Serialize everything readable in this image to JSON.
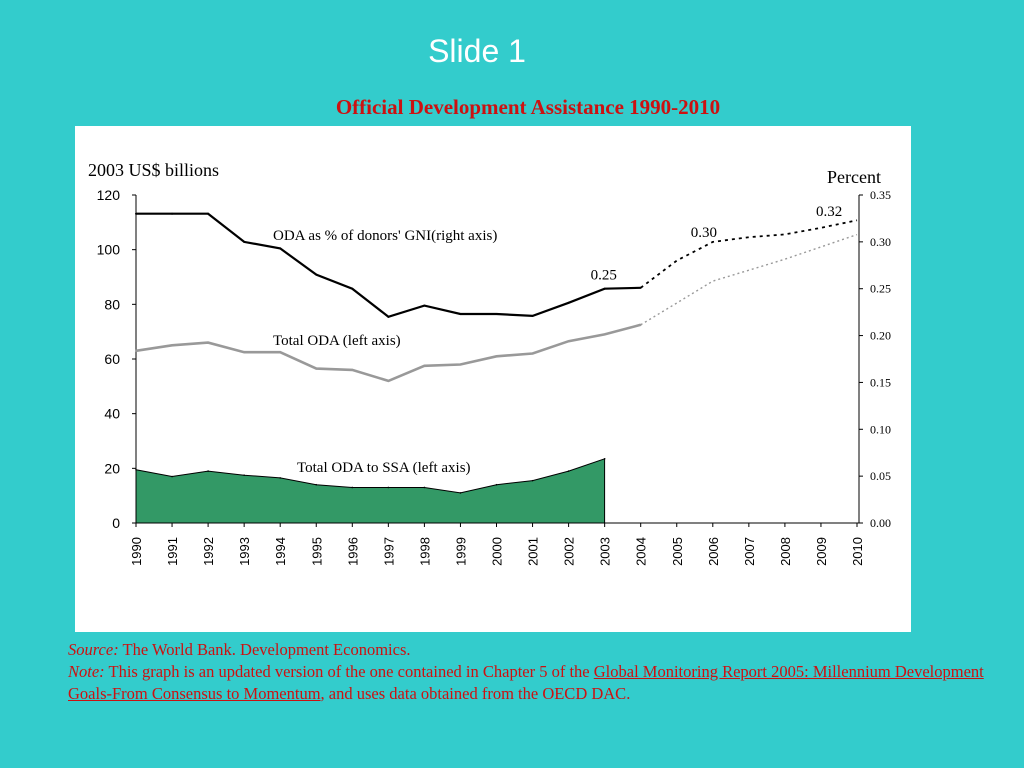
{
  "slide": {
    "title": "Slide 1"
  },
  "chart_data": {
    "type": "line",
    "title": "Official Development Assistance 1990-2010",
    "left_axis_label": "2003 US$ billions",
    "right_axis_label": "Percent",
    "years": [
      "1990",
      "1991",
      "1992",
      "1993",
      "1994",
      "1995",
      "1996",
      "1997",
      "1998",
      "1999",
      "2000",
      "2001",
      "2002",
      "2003",
      "2004",
      "2005",
      "2006",
      "2007",
      "2008",
      "2009",
      "2010"
    ],
    "left_ticks": [
      "0",
      "20",
      "40",
      "60",
      "80",
      "100",
      "120"
    ],
    "left_ylim": [
      0,
      120
    ],
    "right_ticks": [
      "0.00",
      "0.05",
      "0.10",
      "0.15",
      "0.20",
      "0.25",
      "0.30",
      "0.35"
    ],
    "right_ylim": [
      0,
      0.35
    ],
    "series": [
      {
        "name": "Total ODA to SSA (left axis)",
        "kind": "area",
        "axis": "left",
        "color": "#339966",
        "years": [
          "1990",
          "1991",
          "1992",
          "1993",
          "1994",
          "1995",
          "1996",
          "1997",
          "1998",
          "1999",
          "2000",
          "2001",
          "2002",
          "2003"
        ],
        "values": [
          19.5,
          17,
          19,
          17.5,
          16.5,
          14,
          13,
          13,
          13,
          11,
          14,
          15.5,
          19,
          23.5
        ]
      },
      {
        "name": "Total ODA (left axis)",
        "kind": "line",
        "axis": "left",
        "color": "#999999",
        "years": [
          "1990",
          "1991",
          "1992",
          "1993",
          "1994",
          "1995",
          "1996",
          "1997",
          "1998",
          "1999",
          "2000",
          "2001",
          "2002",
          "2003",
          "2004"
        ],
        "values": [
          63,
          65,
          66,
          62.5,
          62.5,
          56.5,
          56,
          52,
          57.5,
          58,
          61,
          62,
          66.5,
          69,
          72.5
        ],
        "projection": {
          "years": [
            "2004",
            "2005",
            "2006",
            "2007",
            "2008",
            "2009",
            "2010"
          ],
          "values": [
            72.5,
            80.5,
            88.5,
            92.5,
            96.5,
            101,
            105.5
          ]
        }
      },
      {
        "name": "ODA as % of donors' GNI(right axis)",
        "kind": "line",
        "axis": "right",
        "color": "#000000",
        "years": [
          "1990",
          "1991",
          "1992",
          "1993",
          "1994",
          "1995",
          "1996",
          "1997",
          "1998",
          "1999",
          "2000",
          "2001",
          "2002",
          "2003",
          "2004"
        ],
        "values": [
          0.33,
          0.33,
          0.33,
          0.3,
          0.293,
          0.265,
          0.25,
          0.22,
          0.232,
          0.223,
          0.223,
          0.221,
          0.235,
          0.25,
          0.251
        ],
        "projection": {
          "years": [
            "2004",
            "2005",
            "2006",
            "2007",
            "2008",
            "2009",
            "2010"
          ],
          "values": [
            0.251,
            0.28,
            0.3,
            0.305,
            0.308,
            0.315,
            0.323
          ]
        }
      }
    ],
    "data_labels": [
      {
        "text": "0.25",
        "year": "2003",
        "value": 0.25
      },
      {
        "text": "0.30",
        "year": "2006",
        "value": 0.3
      },
      {
        "text": "0.32",
        "year": "2010",
        "value": 0.32
      }
    ]
  },
  "notes": {
    "source_label": "Source:",
    "source_text": " The World Bank.  Development Economics.",
    "note_label": "Note:",
    "note_text": " This graph is an updated version of the one contained in Chapter 5 of the ",
    "report_link": "Global Monitoring Report 2005: Millennium Development Goals-From Consensus to Momentum",
    "note_end": ", and uses data obtained from the OECD DAC."
  }
}
